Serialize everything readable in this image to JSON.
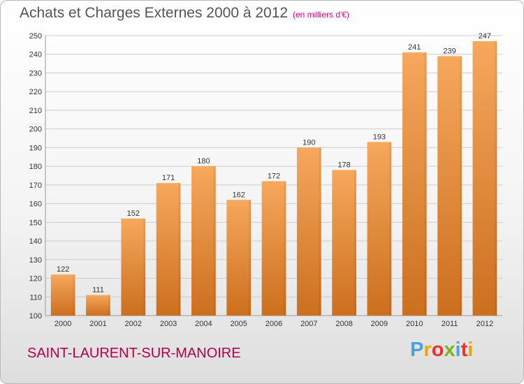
{
  "header": {
    "title": "Achats et Charges Externes 2000 à 2012",
    "unit": "(en milliers d'€)"
  },
  "footer": {
    "commune": "SAINT-LAURENT-SUR-MANOIRE",
    "brand": {
      "text": "Proxiti",
      "letter_colors": [
        "#4aa3df",
        "#f0a30a",
        "#e8322b",
        "#7cb518",
        "#4aa3df",
        "#e8322b",
        "#f0a30a"
      ]
    }
  },
  "colors": {
    "bar_light": "#f6a85c",
    "bar_dark": "#cc6f1e",
    "grid": "#cccccc",
    "axis_text": "#333333",
    "title": "#555555",
    "unit": "#d2007a",
    "commune": "#b3004b"
  },
  "chart_data": {
    "type": "bar",
    "title": "Achats et Charges Externes 2000 à 2012",
    "subtitle": "(en milliers d'€)",
    "xlabel": "",
    "ylabel": "",
    "categories": [
      "2000",
      "2001",
      "2002",
      "2003",
      "2004",
      "2005",
      "2006",
      "2007",
      "2008",
      "2009",
      "2010",
      "2011",
      "2012"
    ],
    "values": [
      122,
      111,
      152,
      171,
      180,
      162,
      172,
      190,
      178,
      193,
      241,
      239,
      247
    ],
    "ylim": [
      100,
      250
    ],
    "yticks": [
      100,
      110,
      120,
      130,
      140,
      150,
      160,
      170,
      180,
      190,
      200,
      210,
      220,
      230,
      240,
      250
    ],
    "grid": true,
    "data_labels": true
  }
}
